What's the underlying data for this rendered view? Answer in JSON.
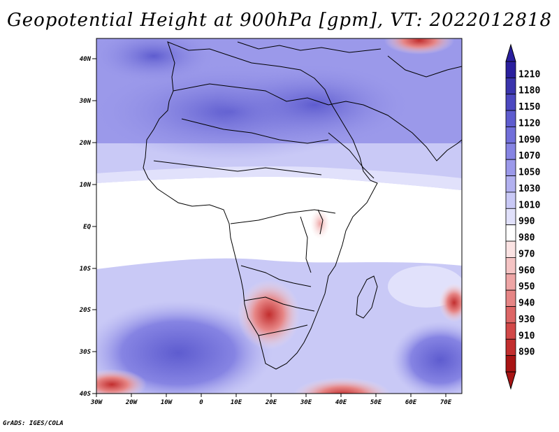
{
  "title": "Geopotential Height at 900hPa [gpm], VT: 2022012818",
  "credit": "GrADS: IGES/COLA",
  "lat_labels": [
    "40N",
    "30N",
    "20N",
    "10N",
    "EQ",
    "10S",
    "20S",
    "30S",
    "40S"
  ],
  "lon_labels": [
    "30W",
    "20W",
    "10W",
    "0",
    "10E",
    "20E",
    "30E",
    "40E",
    "50E",
    "60E",
    "70E"
  ],
  "colorbar": {
    "labels": [
      "1210",
      "1180",
      "1150",
      "1120",
      "1090",
      "1070",
      "1050",
      "1030",
      "1010",
      "990",
      "980",
      "970",
      "960",
      "950",
      "940",
      "930",
      "910",
      "890"
    ],
    "colors": [
      "#2a1f9e",
      "#3a34ad",
      "#4c48c0",
      "#5e5ccf",
      "#716fda",
      "#8684e3",
      "#9b99ea",
      "#b2b1f0",
      "#c9c9f6",
      "#e1e1fb",
      "#ffffff",
      "#fbe3e3",
      "#f5c4c4",
      "#eea5a5",
      "#e68585",
      "#dd6666",
      "#d24848",
      "#c22e2e",
      "#a81414"
    ]
  }
}
